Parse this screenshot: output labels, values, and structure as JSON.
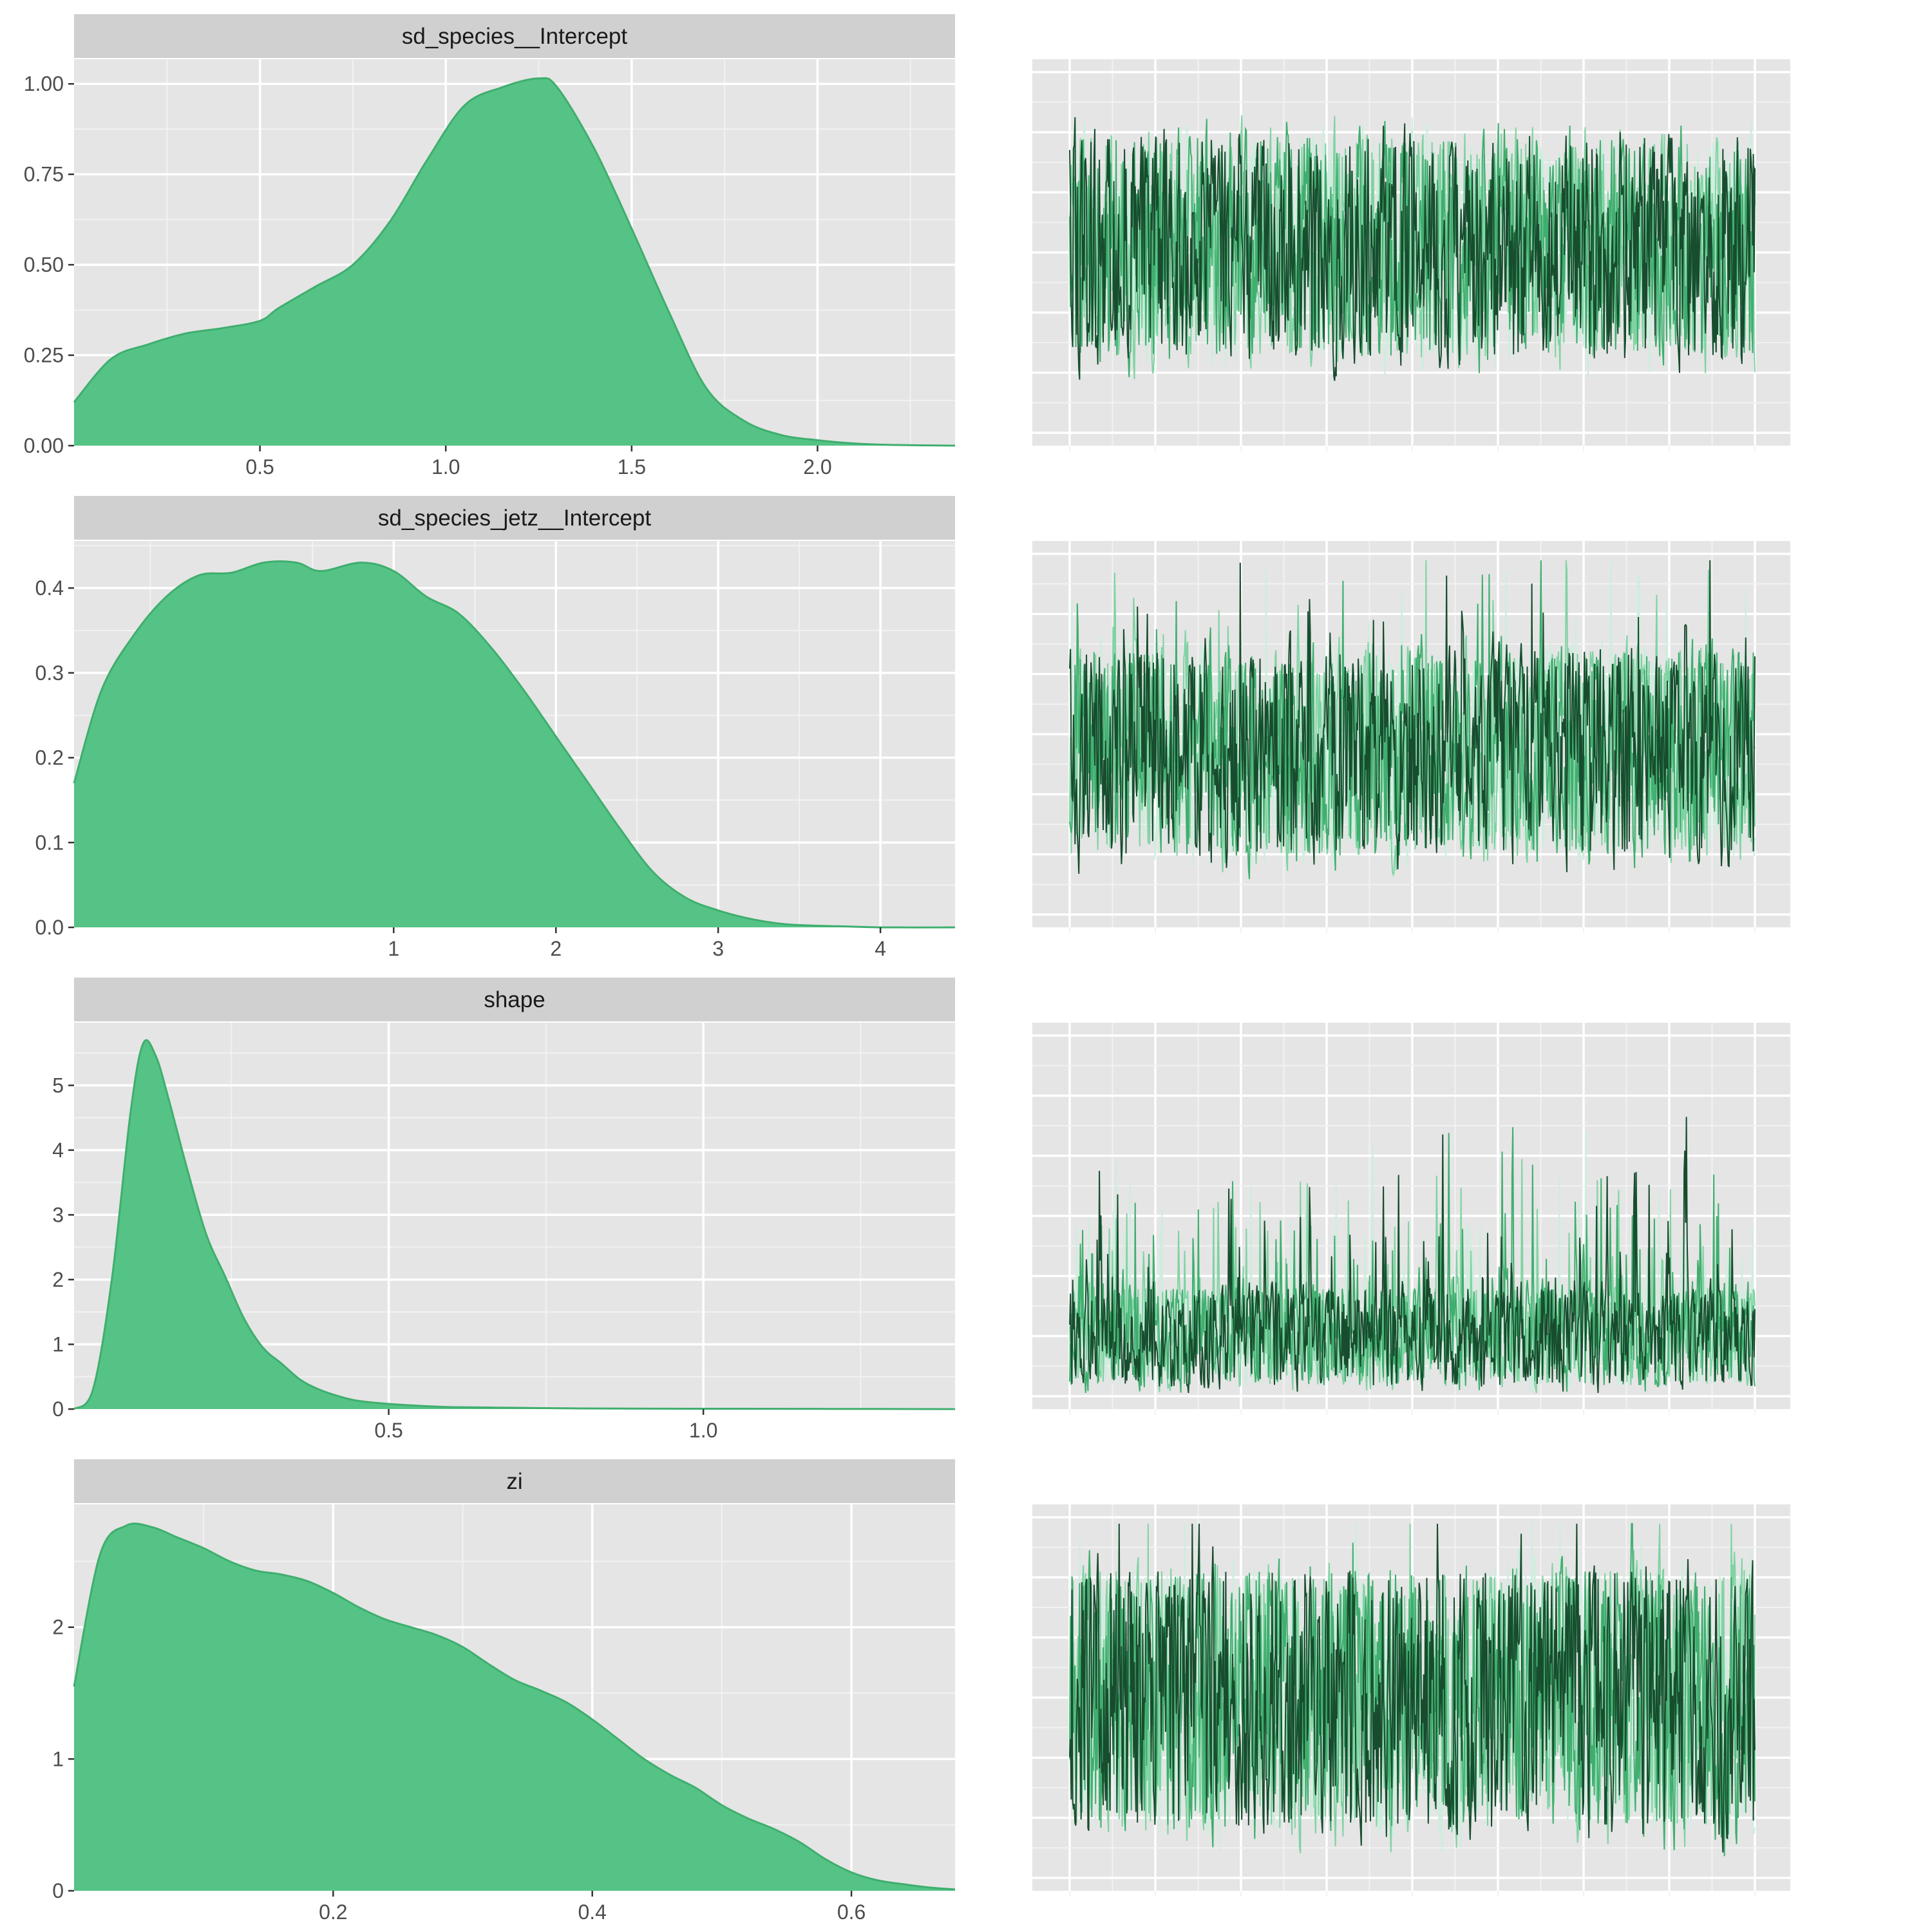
{
  "colors": {
    "panel_bg": "#e5e5e5",
    "grid_major": "#ffffff",
    "grid_minor": "#f2f2f2",
    "strip_bg": "#d0d0d0",
    "density_fill": "#56c386",
    "density_line": "#3fae6e",
    "tick_mark": "#333333",
    "chains": [
      "#cdeede",
      "#7fd3a2",
      "#3fae6e",
      "#174d2e"
    ]
  },
  "chart_data": [
    {
      "type": "area",
      "title": "sd_species__Intercept",
      "xlim": [
        0.0,
        2.37
      ],
      "ylim": [
        0,
        1.02
      ],
      "xticks": [
        0.5,
        1.0,
        1.5,
        2.0
      ],
      "xtick_labels": [
        "0.5",
        "1.0",
        "1.5",
        "2.0"
      ],
      "yticks": [
        0,
        0.25,
        0.5,
        0.75,
        1.0
      ],
      "ytick_labels": [
        "0.00",
        "0.25",
        "0.50",
        "0.75",
        "1.00"
      ],
      "x": [
        0.0,
        0.1,
        0.2,
        0.3,
        0.4,
        0.5,
        0.55,
        0.65,
        0.75,
        0.85,
        0.95,
        1.05,
        1.15,
        1.25,
        1.3,
        1.4,
        1.5,
        1.6,
        1.7,
        1.8,
        1.9,
        2.0,
        2.1,
        2.2,
        2.37
      ],
      "y": [
        0.12,
        0.24,
        0.28,
        0.31,
        0.325,
        0.345,
        0.38,
        0.44,
        0.5,
        0.62,
        0.79,
        0.94,
        0.99,
        1.015,
        0.99,
        0.82,
        0.6,
        0.37,
        0.16,
        0.07,
        0.03,
        0.015,
        0.006,
        0.002,
        0.0
      ]
    },
    {
      "type": "line",
      "xlim": [
        0,
        900
      ],
      "ylim": [
        0,
        1
      ],
      "seed": 11,
      "trace_params": {
        "base": 0.52,
        "spread": 0.27,
        "spike": 0.0
      },
      "n_chains": 4
    },
    {
      "type": "area",
      "title": "sd_species_jetz__Intercept",
      "xlim": [
        -0.97,
        4.46
      ],
      "ylim": [
        0,
        0.435
      ],
      "xticks": [
        1,
        2,
        3,
        4
      ],
      "xtick_labels": [
        "1",
        "2",
        "3",
        "4"
      ],
      "yticks": [
        0,
        0.1,
        0.2,
        0.3,
        0.4
      ],
      "ytick_labels": [
        "0.0",
        "0.1",
        "0.2",
        "0.3",
        "0.4"
      ],
      "x": [
        -0.97,
        -0.8,
        -0.6,
        -0.4,
        -0.2,
        0.0,
        0.2,
        0.4,
        0.55,
        0.8,
        1.0,
        1.2,
        1.4,
        1.6,
        1.8,
        2.0,
        2.2,
        2.4,
        2.6,
        2.8,
        3.0,
        3.2,
        3.4,
        3.6,
        3.8,
        4.0,
        4.46
      ],
      "y": [
        0.17,
        0.28,
        0.345,
        0.39,
        0.415,
        0.418,
        0.43,
        0.43,
        0.42,
        0.43,
        0.42,
        0.39,
        0.37,
        0.33,
        0.28,
        0.225,
        0.17,
        0.115,
        0.065,
        0.035,
        0.02,
        0.01,
        0.004,
        0.002,
        0.001,
        0.0,
        0.0
      ]
    },
    {
      "type": "line",
      "xlim": [
        0,
        900
      ],
      "ylim": [
        0,
        1
      ],
      "seed": 23,
      "trace_params": {
        "base": 0.45,
        "spread": 0.25,
        "spike": 0.06
      },
      "n_chains": 4
    },
    {
      "type": "area",
      "title": "shape",
      "xlim": [
        0.0,
        1.4
      ],
      "ylim": [
        0,
        5.7
      ],
      "xticks": [
        0.5,
        1.0
      ],
      "xtick_labels": [
        "0.5",
        "1.0"
      ],
      "yticks": [
        0,
        1,
        2,
        3,
        4,
        5
      ],
      "ytick_labels": [
        "0",
        "1",
        "2",
        "3",
        "4",
        "5"
      ],
      "x": [
        0.0,
        0.03,
        0.06,
        0.09,
        0.11,
        0.13,
        0.15,
        0.18,
        0.21,
        0.24,
        0.27,
        0.3,
        0.33,
        0.36,
        0.39,
        0.42,
        0.45,
        0.5,
        0.55,
        0.6,
        0.7,
        0.8,
        1.0,
        1.2,
        1.4
      ],
      "y": [
        0.0,
        0.3,
        2.0,
        4.6,
        5.65,
        5.45,
        4.8,
        3.7,
        2.7,
        2.05,
        1.4,
        0.95,
        0.7,
        0.45,
        0.3,
        0.2,
        0.13,
        0.08,
        0.05,
        0.03,
        0.02,
        0.01,
        0.005,
        0.003,
        0.0
      ]
    },
    {
      "type": "line",
      "xlim": [
        0,
        900
      ],
      "ylim": [
        0,
        1
      ],
      "seed": 37,
      "trace_params": {
        "base": 0.16,
        "spread": 0.12,
        "spike": 0.1
      },
      "n_chains": 4
    },
    {
      "type": "area",
      "title": "zi",
      "xlim": [
        0.0,
        0.68
      ],
      "ylim": [
        0,
        2.8
      ],
      "xticks": [
        0.2,
        0.4,
        0.6
      ],
      "xtick_labels": [
        "0.2",
        "0.4",
        "0.6"
      ],
      "yticks": [
        0,
        1,
        2
      ],
      "ytick_labels": [
        "0",
        "1",
        "2"
      ],
      "x": [
        0.0,
        0.02,
        0.04,
        0.06,
        0.08,
        0.1,
        0.12,
        0.14,
        0.16,
        0.18,
        0.2,
        0.22,
        0.24,
        0.26,
        0.28,
        0.3,
        0.32,
        0.34,
        0.36,
        0.38,
        0.4,
        0.42,
        0.44,
        0.46,
        0.48,
        0.5,
        0.52,
        0.54,
        0.56,
        0.58,
        0.6,
        0.62,
        0.64,
        0.66,
        0.68
      ],
      "y": [
        1.55,
        2.55,
        2.77,
        2.76,
        2.68,
        2.6,
        2.5,
        2.43,
        2.4,
        2.35,
        2.26,
        2.15,
        2.06,
        2.0,
        1.94,
        1.85,
        1.72,
        1.6,
        1.52,
        1.43,
        1.3,
        1.15,
        1.0,
        0.88,
        0.78,
        0.65,
        0.55,
        0.47,
        0.37,
        0.24,
        0.14,
        0.08,
        0.05,
        0.025,
        0.01
      ]
    },
    {
      "type": "line",
      "xlim": [
        0,
        900
      ],
      "ylim": [
        0,
        1
      ],
      "seed": 53,
      "trace_params": {
        "base": 0.5,
        "spread": 0.32,
        "spike": 0.02
      },
      "n_chains": 4
    }
  ]
}
